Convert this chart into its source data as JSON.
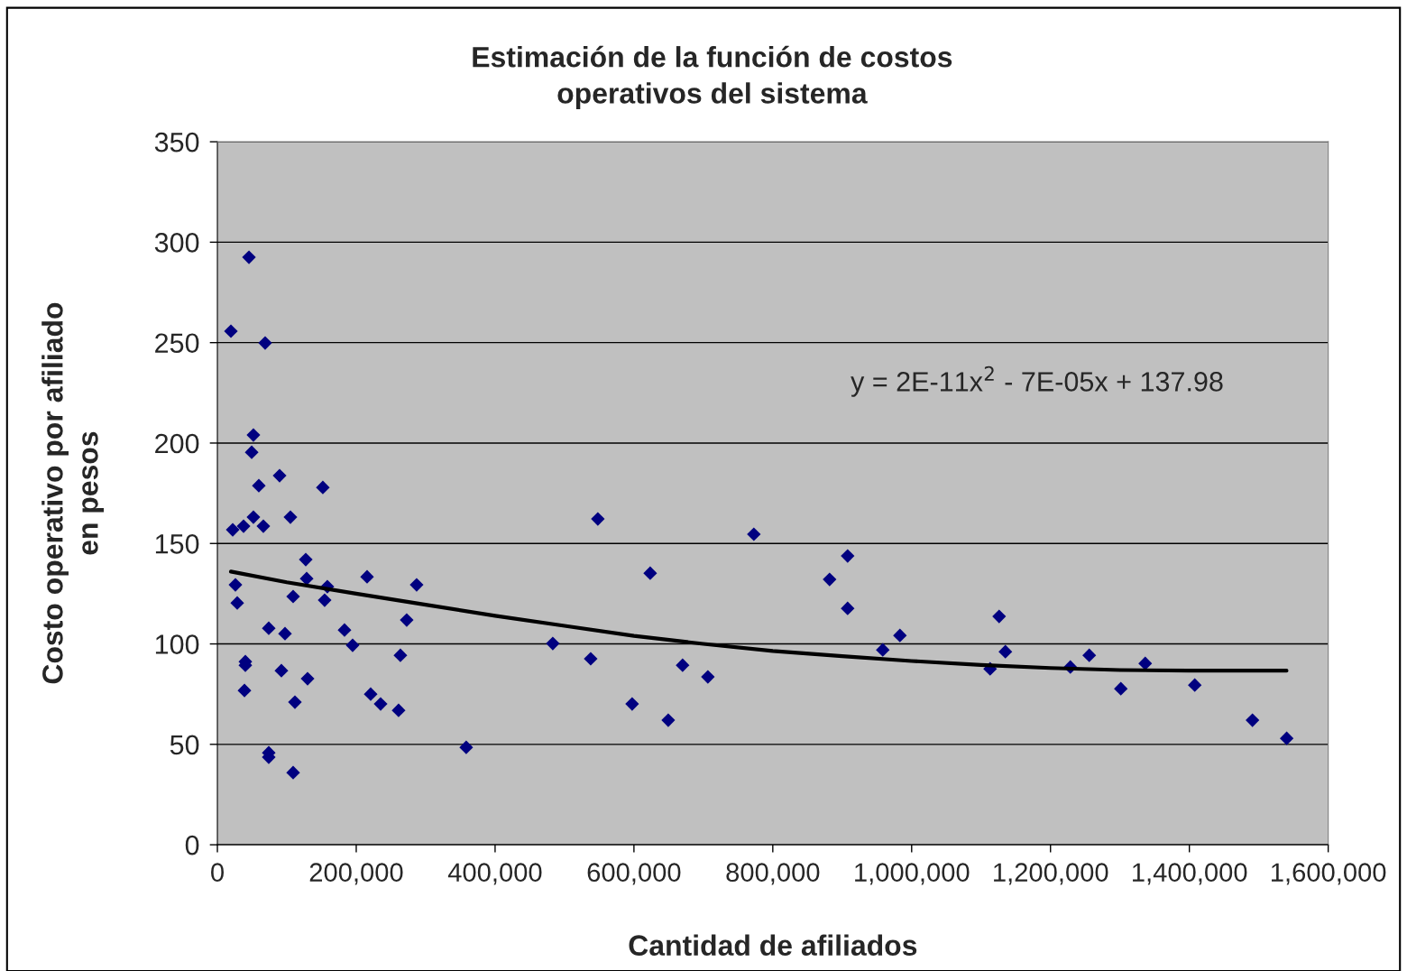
{
  "chart_data": {
    "type": "scatter",
    "title": "Estimación de la función de costos\noperativos del sistema",
    "xlabel": "Cantidad de afiliados",
    "ylabel": "Costo operativo por afiliado\nen pesos",
    "series": [
      {
        "color": "#000080",
        "marker": "diamond",
        "x": [
          19500,
          45500,
          68800,
          51900,
          49400,
          59700,
          89600,
          151900,
          22100,
          37700,
          66200,
          51900,
          105200,
          127300,
          26000,
          28600,
          128600,
          158400,
          154500,
          109100,
          215600,
          287000,
          272700,
          74000,
          97400,
          183100,
          194800,
          40300,
          40300,
          92200,
          129900,
          39000,
          220800,
          235100,
          111700,
          261000,
          263600,
          74000,
          74000,
          109100,
          358400,
          483100,
          537700,
          548000,
          623400,
          597400,
          649400,
          670100,
          706500,
          772700,
          881800,
          907800,
          907800,
          958400,
          983100,
          1113000,
          1126000,
          1135000,
          1228600,
          1255800,
          1301300,
          1336400,
          1407800,
          1490900,
          1540200
        ],
        "values": [
          255.7,
          292.5,
          249.8,
          204,
          195.4,
          178.8,
          183.8,
          177.9,
          156.8,
          158.6,
          158.6,
          163.1,
          163.1,
          142,
          129.4,
          120.4,
          132.5,
          128.5,
          121.8,
          123.6,
          133.4,
          129.4,
          111.9,
          107.8,
          105.1,
          106.9,
          99.3,
          91.2,
          89.4,
          86.7,
          82.7,
          76.8,
          75,
          70.1,
          71,
          66.9,
          94.3,
          45.8,
          43.6,
          35.9,
          48.5,
          100.2,
          92.6,
          162.2,
          135.2,
          70.1,
          62,
          89.4,
          83.6,
          154.6,
          132.1,
          143.8,
          117.7,
          97,
          104.2,
          87.6,
          113.7,
          96.1,
          88.5,
          94.3,
          77.7,
          90.3,
          79.5,
          62,
          53
        ]
      },
      {
        "type": "line",
        "color": "#000000",
        "marker": "none",
        "line_style": "solid",
        "x": [
          19500,
          100000,
          200000,
          300000,
          400000,
          500000,
          600000,
          700000,
          800000,
          900000,
          1000000,
          1100000,
          1200000,
          1300000,
          1400000,
          1540000
        ],
        "values": [
          136,
          130.7,
          125,
          119.5,
          114,
          109,
          104,
          100,
          96.5,
          93.9,
          91.5,
          89.5,
          88,
          87,
          86.7,
          86.7
        ]
      }
    ],
    "xlim": [
      0,
      1600000
    ],
    "ylim": [
      0,
      350
    ],
    "xticks": [
      0,
      {
        "value": 200000,
        "label": "200,000"
      },
      {
        "value": 400000,
        "label": "400,000"
      },
      {
        "value": 600000,
        "label": "600,000"
      },
      {
        "value": 800000,
        "label": "800,000"
      },
      {
        "value": 1000000,
        "label": "1,000,000"
      },
      {
        "value": 1200000,
        "label": "1,200,000"
      },
      {
        "value": 1400000,
        "label": "1,400,000"
      },
      {
        "value": 1600000,
        "label": "1,600,000"
      }
    ],
    "yticks": [
      0,
      50,
      100,
      150,
      200,
      250,
      300,
      350
    ],
    "grid": "y",
    "legend": false,
    "annotations": [
      "y = 2E-11x$^{2}$ - 7E-05x + 137.98"
    ]
  }
}
